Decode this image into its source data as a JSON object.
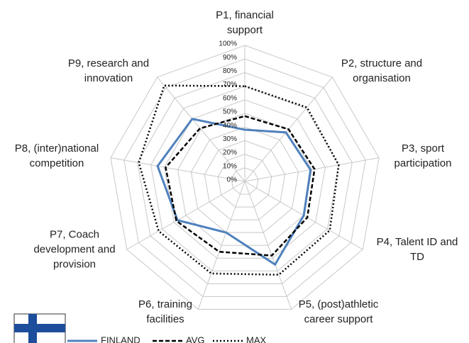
{
  "chart_data": {
    "type": "radar",
    "categories": [
      "P1, financial support",
      "P2, structure and organisation",
      "P3, sport participation",
      "P4, Talent ID and TD",
      "P5, (post)athletic career support",
      "P6, training facilities",
      "P7, Coach development and provision",
      "P8, (inter)national competition",
      "P9, research and innovation"
    ],
    "series": [
      {
        "name": "FINLAND",
        "color": "#4f81bd",
        "style": "solid",
        "values": [
          38,
          47,
          49,
          50,
          65,
          40,
          57,
          65,
          60
        ]
      },
      {
        "name": "AVG",
        "color": "#000000",
        "style": "dashed",
        "values": [
          48,
          50,
          52,
          53,
          58,
          55,
          58,
          59,
          51
        ]
      },
      {
        "name": "MAX",
        "color": "#000000",
        "style": "dotted",
        "values": [
          70,
          71,
          70,
          72,
          73,
          72,
          73,
          79,
          92
        ]
      }
    ],
    "ylim": [
      0,
      100
    ],
    "yticks": [
      {
        "value": 0,
        "label": "0%"
      },
      {
        "value": 10,
        "label": "10%"
      },
      {
        "value": 20,
        "label": "20%"
      },
      {
        "value": 30,
        "label": "30%"
      },
      {
        "value": 40,
        "label": "40%"
      },
      {
        "value": 50,
        "label": "50%"
      },
      {
        "value": 60,
        "label": "60%"
      },
      {
        "value": 70,
        "label": "70%"
      },
      {
        "value": 80,
        "label": "80%"
      },
      {
        "value": 90,
        "label": "90%"
      },
      {
        "value": 100,
        "label": "100%"
      }
    ],
    "grid": true
  }
}
